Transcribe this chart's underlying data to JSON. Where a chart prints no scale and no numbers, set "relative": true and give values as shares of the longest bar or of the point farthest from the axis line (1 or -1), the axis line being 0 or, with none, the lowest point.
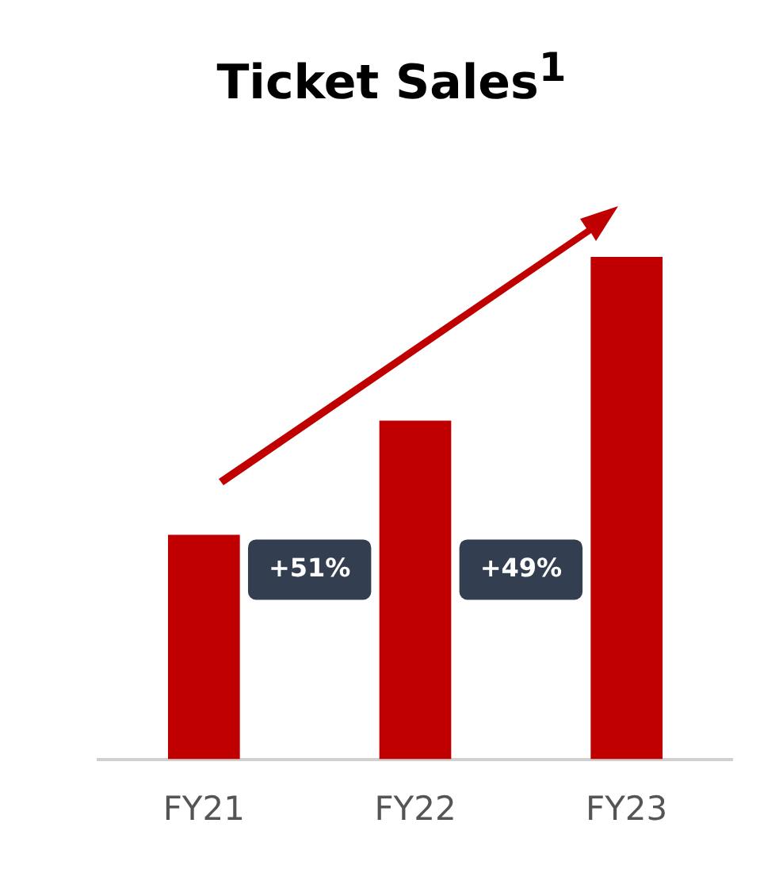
{
  "chart_data": {
    "type": "bar",
    "title": "Ticket Sales$^{1}$",
    "categories": [
      "FY21",
      "FY22",
      "FY23"
    ],
    "values": [
      0.447,
      0.674,
      1
    ],
    "color": "#c00000",
    "relative": true,
    "annotations": [
      "+51%",
      "+49%"
    ]
  }
}
